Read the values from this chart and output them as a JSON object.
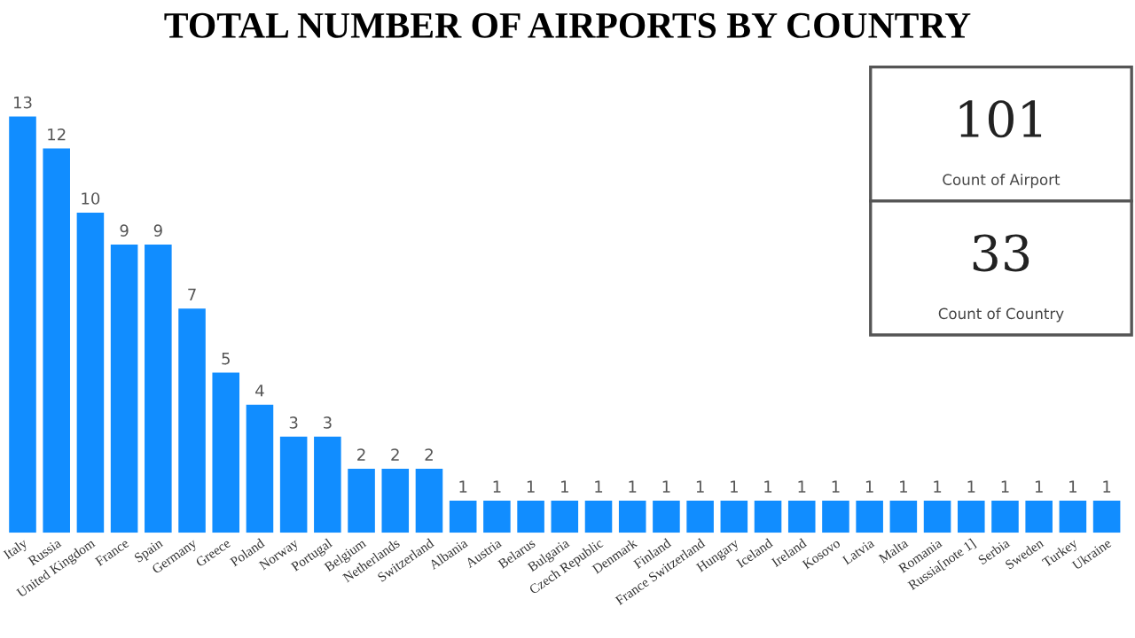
{
  "chart_data": {
    "type": "bar",
    "title": "TOTAL NUMBER OF AIRPORTS BY COUNTRY",
    "categories": [
      "Italy",
      "Russia",
      "United Kingdom",
      "France",
      "Spain",
      "Germany",
      "Greece",
      "Poland",
      "Norway",
      "Portugal",
      "Belgium",
      "Netherlands",
      "Switzerland",
      "Albania",
      "Austria",
      "Belarus",
      "Bulgaria",
      "Czech Republic",
      "Denmark",
      "Finland",
      "France Switzerland",
      "Hungary",
      "Iceland",
      "Ireland",
      "Kosovo",
      "Latvia",
      "Malta",
      "Romania",
      "Russia[note 1]",
      "Serbia",
      "Sweden",
      "Turkey",
      "Ukraine"
    ],
    "values": [
      13,
      12,
      10,
      9,
      9,
      7,
      5,
      4,
      3,
      3,
      2,
      2,
      2,
      1,
      1,
      1,
      1,
      1,
      1,
      1,
      1,
      1,
      1,
      1,
      1,
      1,
      1,
      1,
      1,
      1,
      1,
      1,
      1
    ],
    "color": "#118dff",
    "data_labels": true,
    "tick_labels": "x",
    "annotations": [
      "101",
      "Count of Airport",
      "33",
      "Count of Country"
    ]
  }
}
